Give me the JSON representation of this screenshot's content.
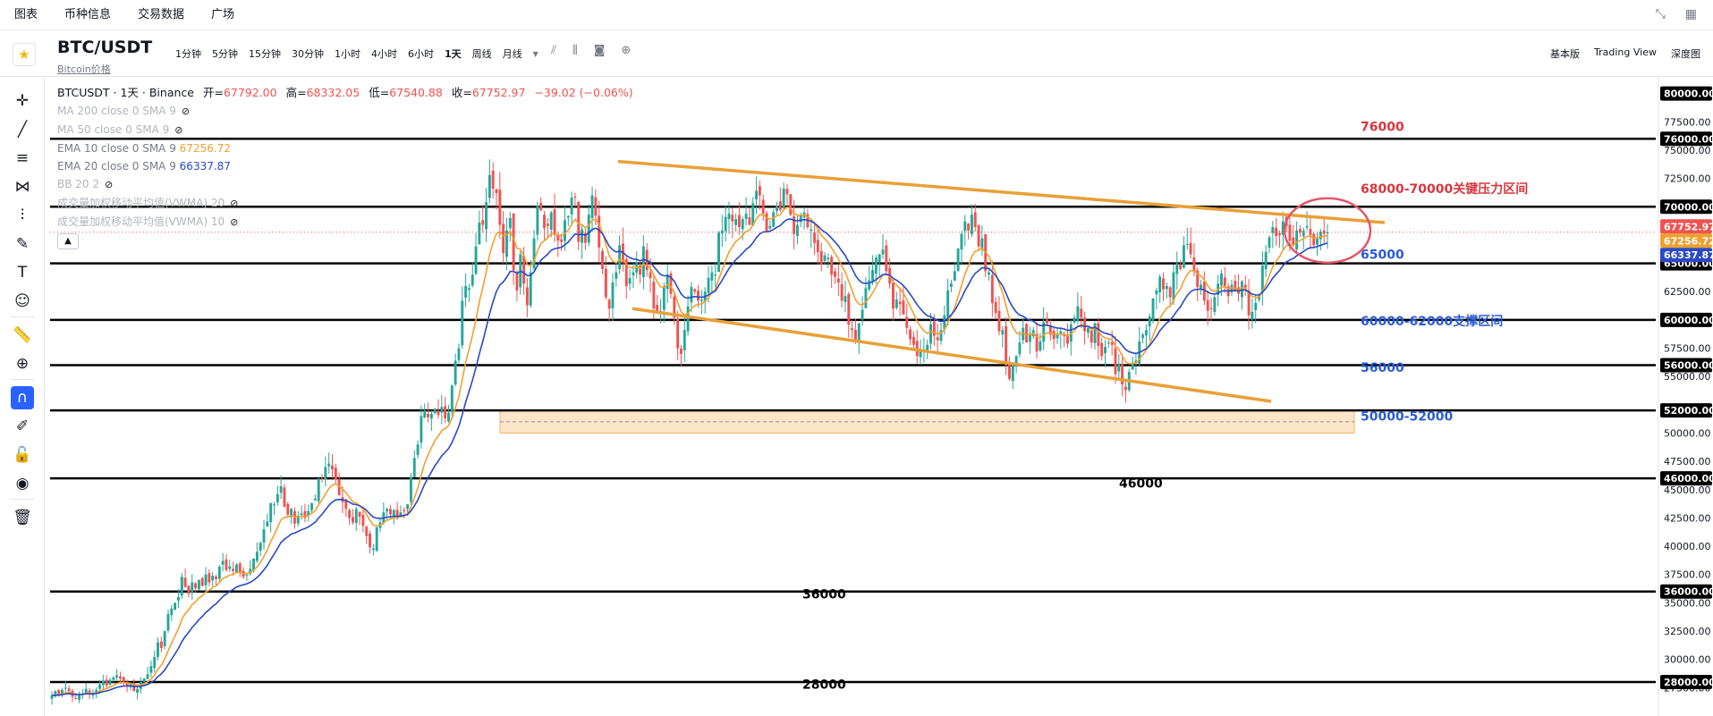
{
  "nav": {
    "tabs": [
      "图表",
      "币种信息",
      "交易数据",
      "广场"
    ]
  },
  "symbol": {
    "name": "BTC/USDT",
    "sub": "Bitcoin价格"
  },
  "intervals": [
    "1分钟",
    "5分钟",
    "15分钟",
    "30分钟",
    "1小时",
    "4小时",
    "6小时",
    "1天",
    "周线",
    "月线"
  ],
  "interval_active": "1天",
  "views": [
    "基本版",
    "Trading View",
    "深度图"
  ],
  "legend": {
    "symbol_line": "BTCUSDT · 1天 · Binance",
    "open_label": "开=",
    "open": "67792.00",
    "high_label": "高=",
    "high": "68332.05",
    "low_label": "低=",
    "low": "67540.88",
    "close_label": "收=",
    "close": "67752.97",
    "change": "−39.02 (−0.06%)",
    "ma200": "MA 200 close 0 SMA 9",
    "ma50": "MA 50 close 0 SMA 9",
    "ema10": "EMA 10 close 0 SMA 9",
    "ema10_value": "67256.72",
    "ema20": "EMA 20 close 0 SMA 9",
    "ema20_value": "66337.87",
    "bb": "BB 20 2",
    "vwma20": "成交量加权移动平均值(VWMA) 20",
    "vwma10": "成交量加权移动平均值(VWMA) 10"
  },
  "colors": {
    "up": "#26a69a",
    "down": "#ef5350",
    "ema10": "#f0a030",
    "ema20": "#2a49c4",
    "trend": "#e8a038",
    "red_label": "#d9363e",
    "blue_label": "#2a5bd7"
  },
  "chart_data": {
    "type": "candlestick",
    "ylim": [
      25000,
      81000
    ],
    "y_ticks": [
      27500,
      30000,
      32500,
      35000,
      37500,
      40000,
      42500,
      45000,
      47500,
      50000,
      55000,
      57500,
      62500,
      67500,
      72500,
      75000,
      77500,
      80000
    ],
    "y_tick_labels": [
      "27500.00",
      "30000.00",
      "32500.00",
      "35000.00",
      "37500.00",
      "40000.00",
      "42500.00",
      "45000.00",
      "47500.00",
      "50000.00",
      "55000.00",
      "57500.00",
      "62500.00",
      "67500.00",
      "72500.00",
      "75000.00",
      "77500.00",
      "80000.00"
    ],
    "level_lines": [
      28000,
      36000,
      46000,
      52000,
      56000,
      60000,
      65000,
      70000,
      76000
    ],
    "level_line_labels": [
      "28000.00",
      "36000.00",
      "46000.00",
      "52000.00",
      "56000.00",
      "60000.00",
      "65000.00",
      "70000.00",
      "76000.00"
    ],
    "annotations": [
      {
        "text": "76000",
        "y": 76700,
        "color": "red"
      },
      {
        "text": "68000-70000关键压力区间",
        "y": 71200,
        "color": "red"
      },
      {
        "text": "65000",
        "y": 65400,
        "color": "blue"
      },
      {
        "text": "60000-62000支撑区间",
        "y": 59500,
        "color": "blue"
      },
      {
        "text": "56000",
        "y": 55400,
        "color": "blue"
      },
      {
        "text": "50000-52000",
        "y": 51100,
        "color": "blue"
      },
      {
        "text": "46000",
        "y": 45200,
        "color": "black"
      },
      {
        "text": "36000",
        "y": 35400,
        "color": "black"
      },
      {
        "text": "28000",
        "y": 27400,
        "color": "black"
      }
    ],
    "price_badges": [
      {
        "text": "67752.97",
        "y": 67753,
        "color": "#ef5350"
      },
      {
        "text": "67256.72",
        "y": 67257,
        "color": "#f0a030"
      },
      {
        "text": "66337.87",
        "y": 66338,
        "color": "#2a49c4"
      }
    ],
    "closes": [
      26800,
      27200,
      26900,
      27300,
      27500,
      27200,
      26700,
      26500,
      26900,
      27000,
      27400,
      27000,
      26900,
      27300,
      27800,
      28100,
      27700,
      28200,
      28400,
      28600,
      28300,
      28100,
      27600,
      27800,
      27200,
      27400,
      28000,
      28300,
      28700,
      29400,
      30200,
      31500,
      31000,
      32500,
      34000,
      34500,
      35000,
      35500,
      37300,
      36400,
      35800,
      36800,
      36300,
      37000,
      36500,
      37500,
      36800,
      37400,
      37100,
      38200,
      38700,
      37900,
      38200,
      37800,
      38400,
      37700,
      37300,
      37500,
      38000,
      38900,
      39500,
      40300,
      41500,
      42200,
      43800,
      43700,
      44600,
      45300,
      43500,
      42800,
      43300,
      42000,
      42700,
      42900,
      42500,
      43100,
      43800,
      44200,
      46000,
      45900,
      47000,
      47300,
      46800,
      45900,
      44500,
      43900,
      43300,
      42500,
      42100,
      43300,
      42600,
      41800,
      40900,
      39900,
      39800,
      41700,
      42100,
      43000,
      43300,
      42800,
      43200,
      42500,
      43000,
      43100,
      43700,
      46100,
      47800,
      49000,
      51500,
      52000,
      51400,
      51700,
      52100,
      51600,
      52300,
      51300,
      51800,
      54200,
      56400,
      57500,
      61700,
      63000,
      62800,
      64000,
      66500,
      68600,
      68400,
      70400,
      72800,
      71600,
      71200,
      68400,
      65900,
      67900,
      69000,
      64400,
      62600,
      65800,
      63200,
      61300,
      64200,
      67200,
      70100,
      69700,
      68100,
      68300,
      69500,
      67500,
      67000,
      66900,
      68800,
      69200,
      70800,
      70800,
      66900,
      68000,
      66800,
      69300,
      71000,
      69200,
      66400,
      64500,
      62000,
      61000,
      63300,
      64200,
      66600,
      65100,
      63000,
      63700,
      64200,
      65100,
      64000,
      66500,
      64400,
      63700,
      61000,
      60800,
      60800,
      62900,
      64000,
      62300,
      60200,
      57500,
      57000,
      59100,
      61200,
      62900,
      62500,
      61700,
      61800,
      62500,
      63700,
      64200,
      64000,
      67700,
      67900,
      69100,
      69400,
      68700,
      68900,
      68200,
      68900,
      69400,
      68400,
      70300,
      71400,
      71000,
      69400,
      67800,
      68300,
      69500,
      70100,
      69700,
      71600,
      71100,
      69300,
      67600,
      68400,
      69200,
      69500,
      68200,
      68000,
      66800,
      66000,
      64900,
      65700,
      65500,
      64000,
      63800,
      63300,
      61700,
      62100,
      59600,
      59100,
      58000,
      59700,
      60900,
      62800,
      63500,
      64400,
      65500,
      65800,
      66200,
      64300,
      63200,
      61000,
      61800,
      61400,
      60500,
      59300,
      58300,
      57800,
      56800,
      57300,
      57400,
      57800,
      59600,
      58600,
      58200,
      59100,
      60400,
      62600,
      63200,
      64300,
      66300,
      67600,
      68700,
      67900,
      69300,
      68200,
      66500,
      67200,
      64300,
      64200,
      61500,
      60600,
      59000,
      59100,
      56000,
      54800,
      56000,
      56800,
      58000,
      59300,
      58000,
      58800,
      59100,
      57200,
      58100,
      59800,
      59700,
      58700,
      58300,
      58700,
      59000,
      58600,
      57900,
      59600,
      60200,
      61200,
      60200,
      59000,
      59300,
      58000,
      59700,
      57700,
      56800,
      57600,
      58000,
      57800,
      55200,
      56100,
      54300,
      53800,
      55400,
      56200,
      56400,
      58100,
      58700,
      59100,
      60300,
      61900,
      62600,
      63800,
      62700,
      63000,
      62000,
      64200,
      65000,
      64500,
      66600,
      66700,
      65800,
      64300,
      62900,
      63100,
      61700,
      60800,
      61000,
      62000,
      63200,
      64100,
      63000,
      62100,
      63100,
      62600,
      62300,
      63400,
      62800,
      60400,
      60700,
      61500,
      62200,
      64800,
      66000,
      67300,
      68200,
      67400,
      67500,
      68700,
      68300,
      67000,
      66600,
      67900,
      67700,
      67900,
      68300,
      67500,
      66600,
      67200,
      67800,
      67600,
      67753
    ]
  }
}
